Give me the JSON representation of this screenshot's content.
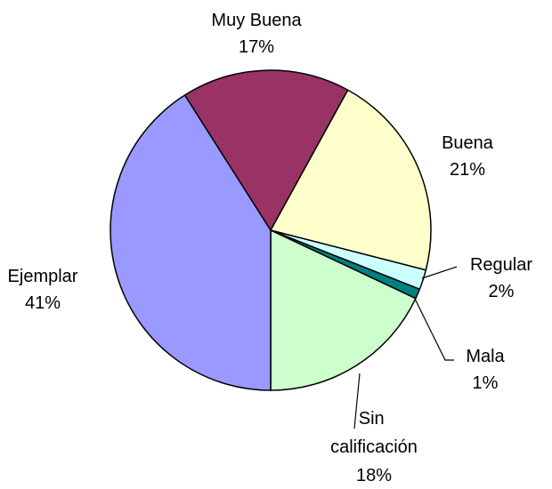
{
  "chart_data": {
    "type": "pie",
    "categories": [
      "Muy Buena",
      "Buena",
      "Regular",
      "Mala",
      "Sin calificación",
      "Ejemplar"
    ],
    "values": [
      17,
      21,
      2,
      1,
      18,
      41
    ],
    "value_labels": [
      "17%",
      "21%",
      "2%",
      "1%",
      "18%",
      "41%"
    ],
    "colors": [
      "#993366",
      "#ffffcc",
      "#ccffff",
      "#008080",
      "#ccffcc",
      "#9999ff"
    ]
  }
}
